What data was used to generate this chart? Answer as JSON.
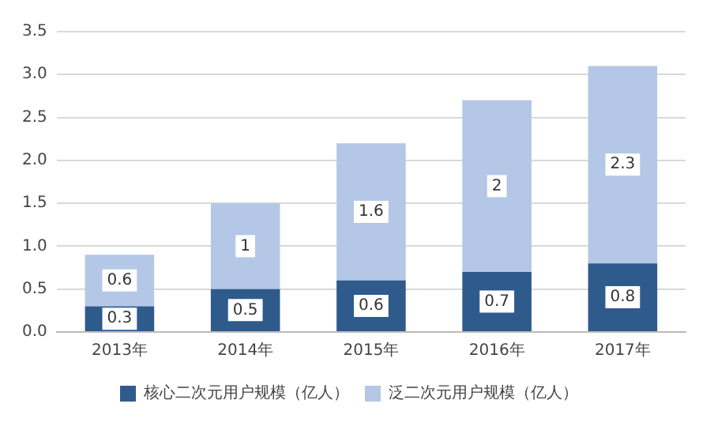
{
  "chart_data": {
    "type": "bar",
    "stacked": true,
    "categories": [
      "2013年",
      "2014年",
      "2015年",
      "2016年",
      "2017年"
    ],
    "series": [
      {
        "name": "核心二次元用户规模（亿人）",
        "color": "#2f5a8c",
        "values": [
          0.3,
          0.5,
          0.6,
          0.7,
          0.8
        ]
      },
      {
        "name": "泛二次元用户规模（亿人）",
        "color": "#b4c7e7",
        "values": [
          0.6,
          1,
          1.6,
          2,
          2.3
        ]
      }
    ],
    "ylim": [
      0,
      3.5
    ],
    "yticks": [
      {
        "value": 0,
        "label": "0.0"
      },
      {
        "value": 0.5,
        "label": "0.5"
      },
      {
        "value": 1,
        "label": "1.0"
      },
      {
        "value": 1.5,
        "label": "1.5"
      },
      {
        "value": 2,
        "label": "2.0"
      },
      {
        "value": 2.5,
        "label": "2.5"
      },
      {
        "value": 3,
        "label": "3.0"
      },
      {
        "value": 3.5,
        "label": "3.5"
      }
    ],
    "grid": "y",
    "legend": "bottom",
    "data_labels": true
  }
}
